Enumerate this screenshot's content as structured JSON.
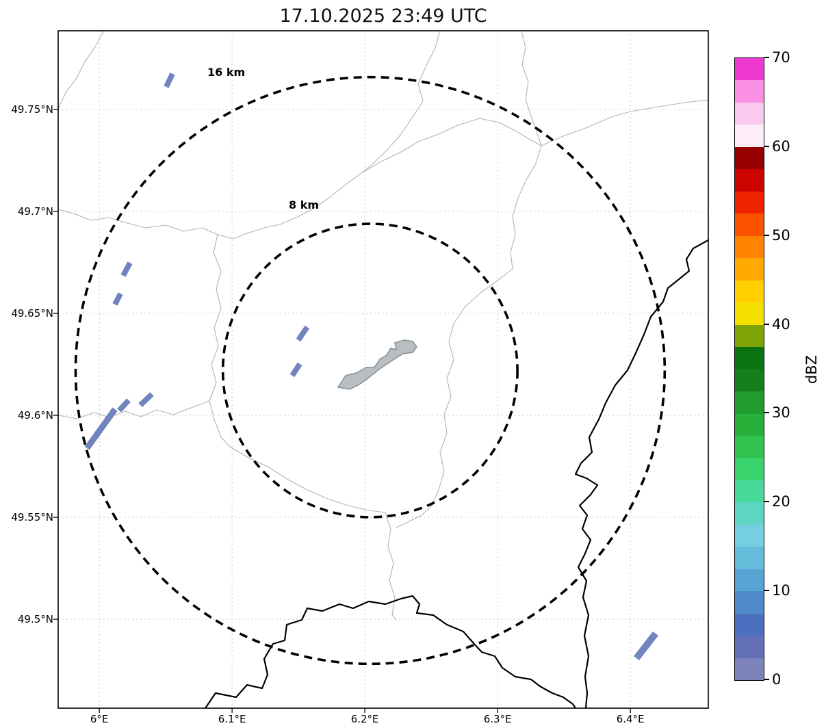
{
  "title": "17.10.2025 23:49 UTC",
  "map": {
    "extent": {
      "lon_min": 5.969,
      "lon_max": 6.4587,
      "lat_min": 49.4564,
      "lat_max": 49.7886
    },
    "x_ticks": [
      {
        "label": "6°E",
        "lon": 6.0
      },
      {
        "label": "6.1°E",
        "lon": 6.1
      },
      {
        "label": "6.2°E",
        "lon": 6.2
      },
      {
        "label": "6.3°E",
        "lon": 6.3
      },
      {
        "label": "6.4°E",
        "lon": 6.4
      }
    ],
    "y_ticks": [
      {
        "label": "49.75°N",
        "lat": 49.75
      },
      {
        "label": "49.7°N",
        "lat": 49.7
      },
      {
        "label": "49.65°N",
        "lat": 49.65
      },
      {
        "label": "49.6°N",
        "lat": 49.6
      },
      {
        "label": "49.55°N",
        "lat": 49.55
      },
      {
        "label": "49.5°N",
        "lat": 49.5
      }
    ],
    "ring_center": {
      "lon": 6.204,
      "lat": 49.622
    },
    "range_rings": [
      {
        "radius_km": 16,
        "label": "16 km"
      },
      {
        "radius_km": 8,
        "label": "8 km"
      }
    ],
    "echoes": [
      {
        "lon1": 6.0504,
        "lat1": 49.7611,
        "lon2": 6.0551,
        "lat2": 49.7675,
        "w": 8
      },
      {
        "lon1": 6.018,
        "lat1": 49.6685,
        "lon2": 6.0231,
        "lat2": 49.6748,
        "w": 8
      },
      {
        "lon1": 6.0118,
        "lat1": 49.6544,
        "lon2": 6.0159,
        "lat2": 49.6597,
        "w": 8
      },
      {
        "lon1": 6.1499,
        "lat1": 49.6369,
        "lon2": 6.1566,
        "lat2": 49.6433,
        "w": 8
      },
      {
        "lon1": 6.1453,
        "lat1": 49.6195,
        "lon2": 6.151,
        "lat2": 49.6252,
        "w": 8
      },
      {
        "lon1": 6.0309,
        "lat1": 49.605,
        "lon2": 6.0396,
        "lat2": 49.6104,
        "w": 8
      },
      {
        "lon1": 6.0149,
        "lat1": 49.6024,
        "lon2": 6.0221,
        "lat2": 49.6074,
        "w": 8
      },
      {
        "lon1": 5.9907,
        "lat1": 49.5839,
        "lon2": 6.0118,
        "lat2": 49.603,
        "w": 9
      },
      {
        "lon1": 6.4046,
        "lat1": 49.4809,
        "lon2": 6.419,
        "lat2": 49.493,
        "w": 10
      }
    ],
    "echo_dbz_range": "0-7.5"
  },
  "colorbar": {
    "label": "dBZ",
    "vmin": 0,
    "vmax": 70,
    "ticks": [
      0,
      10,
      20,
      30,
      40,
      50,
      60,
      70
    ],
    "step_dbz": 2.5,
    "colors_top_to_bottom": [
      "#ef3ad2",
      "#fb8fe3",
      "#fcc9ef",
      "#fdeef7",
      "#970000",
      "#cb0400",
      "#ee2400",
      "#fb5200",
      "#ff8300",
      "#ffa800",
      "#ffcf00",
      "#f5e000",
      "#7da305",
      "#0c7313",
      "#157f1b",
      "#209d2c",
      "#27b13a",
      "#2fc24e",
      "#38d36c",
      "#47da9b",
      "#5fd5c4",
      "#74d0e0",
      "#66bcdb",
      "#57a3d3",
      "#4e8ac9",
      "#4d6fbf",
      "#626fb5",
      "#7b83ba"
    ]
  },
  "colors": {
    "echo": "#7184bd",
    "ring": "#000000",
    "grid": "#c9c9c9",
    "admin_boundary": "#b2b2b2",
    "country_border": "#000000",
    "airport_fill": "#b9bec3",
    "airport_edge": "#878d91",
    "frame": "#000000"
  },
  "chart_data": {
    "type": "map-radar",
    "title": "17.10.2025 23:49 UTC",
    "colorbar_label": "dBZ",
    "colorbar_range": [
      0,
      70
    ],
    "range_rings_km": [
      8,
      16
    ],
    "ring_center_lonlat": [
      6.204,
      49.622
    ],
    "lon_ticks": [
      6.0,
      6.1,
      6.2,
      6.3,
      6.4
    ],
    "lat_ticks": [
      49.5,
      49.55,
      49.6,
      49.65,
      49.7,
      49.75
    ],
    "echo_intensity_dbz": "approx 0-7.5 (slate blue)"
  }
}
